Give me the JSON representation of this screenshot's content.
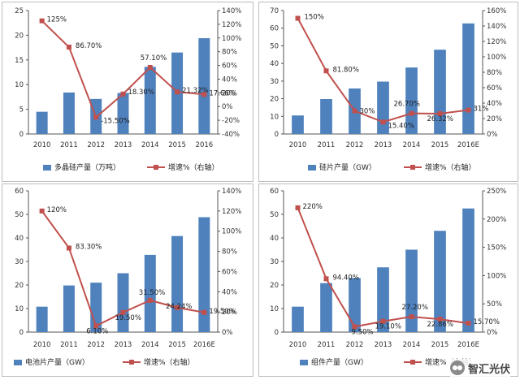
{
  "colors": {
    "bar": "#4f81bd",
    "line": "#c0504d",
    "axis": "#555555",
    "grid": "#d9d9d9"
  },
  "watermark": {
    "text": "智汇光伏"
  },
  "chart_data": [
    {
      "type": "bar",
      "categories": [
        "2010",
        "2011",
        "2012",
        "2013",
        "2014",
        "2015",
        "2016"
      ],
      "series": [
        {
          "name": "多晶硅产量（万吨）",
          "values": [
            4.5,
            8.4,
            7.1,
            8.3,
            13.6,
            16.5,
            19.4
          ],
          "axis": "left"
        },
        {
          "name": "增速%（右轴）",
          "type": "line",
          "values": [
            125,
            86.7,
            -15.5,
            18.3,
            57.1,
            21.32,
            17.66
          ],
          "axis": "right",
          "labels": [
            "125%",
            "86.70%",
            "-15.50%",
            "18.30%",
            "57.10%",
            "21.32%",
            "17.66%"
          ]
        }
      ],
      "ylim_left": [
        0,
        25
      ],
      "yticks_left": [
        "0",
        "5",
        "10",
        "15",
        "20",
        "25"
      ],
      "ylim_right": [
        -40,
        140
      ],
      "yticks_right": [
        "-40%",
        "-20%",
        "0%",
        "20%",
        "40%",
        "60%",
        "80%",
        "100%",
        "120%",
        "140%"
      ],
      "legend": "bottom"
    },
    {
      "type": "bar",
      "categories": [
        "2010",
        "2011",
        "2012",
        "2013",
        "2014",
        "2015",
        "2016E"
      ],
      "series": [
        {
          "name": "硅片产量（GW）",
          "values": [
            10.5,
            19.8,
            25.8,
            29.7,
            37.7,
            47.8,
            62.7
          ],
          "axis": "left"
        },
        {
          "name": "增速%（右轴）",
          "type": "line",
          "values": [
            150,
            81.8,
            30,
            15.4,
            26.7,
            26.32,
            31
          ],
          "axis": "right",
          "labels": [
            "150%",
            "81.80%",
            "30%",
            "15.40%",
            "26.70%",
            "26.32%",
            "31%"
          ]
        }
      ],
      "ylim_left": [
        0,
        70
      ],
      "yticks_left": [
        "0",
        "10",
        "20",
        "30",
        "40",
        "50",
        "60",
        "70"
      ],
      "ylim_right": [
        0,
        160
      ],
      "yticks_right": [
        "0%",
        "20%",
        "40%",
        "60%",
        "80%",
        "100%",
        "120%",
        "140%",
        "160%"
      ],
      "legend": "bottom"
    },
    {
      "type": "bar",
      "categories": [
        "2010",
        "2011",
        "2012",
        "2013",
        "2014",
        "2015",
        "2016E"
      ],
      "series": [
        {
          "name": "电池片产量（GW）",
          "values": [
            10.8,
            19.8,
            21,
            25,
            32.8,
            40.8,
            48.8
          ],
          "axis": "left"
        },
        {
          "name": "增速%（右轴）",
          "type": "line",
          "values": [
            120,
            83.3,
            6.1,
            19.5,
            31.5,
            24.24,
            19.5
          ],
          "axis": "right",
          "labels": [
            "120%",
            "83.30%",
            "6.10%",
            "19.50%",
            "31.50%",
            "24.24%",
            "19.50%"
          ]
        }
      ],
      "ylim_left": [
        0,
        60
      ],
      "yticks_left": [
        "0",
        "10",
        "20",
        "30",
        "40",
        "50",
        "60"
      ],
      "ylim_right": [
        0,
        140
      ],
      "yticks_right": [
        "0%",
        "20%",
        "40%",
        "60%",
        "80%",
        "100%",
        "120%",
        "140%"
      ],
      "legend": "bottom"
    },
    {
      "type": "bar",
      "categories": [
        "2010",
        "2011",
        "2012",
        "2013",
        "2014",
        "2015",
        "2016E"
      ],
      "series": [
        {
          "name": "组件产量（GW）",
          "values": [
            10.8,
            20.8,
            23,
            27.5,
            35,
            43,
            52.5
          ],
          "axis": "left"
        },
        {
          "name": "增速%（右轴）",
          "type": "line",
          "values": [
            220,
            94.4,
            9.5,
            19.1,
            27.2,
            22.86,
            15.7
          ],
          "axis": "right",
          "labels": [
            "220%",
            "94.40%",
            "9.50%",
            "19.10%",
            "27.20%",
            "22.86%",
            "15.70%"
          ]
        }
      ],
      "ylim_left": [
        0,
        60
      ],
      "yticks_left": [
        "0",
        "10",
        "20",
        "30",
        "40",
        "50",
        "60"
      ],
      "ylim_right": [
        0,
        250
      ],
      "yticks_right": [
        "0%",
        "50%",
        "100%",
        "150%",
        "200%",
        "250%"
      ],
      "legend": "bottom"
    }
  ]
}
